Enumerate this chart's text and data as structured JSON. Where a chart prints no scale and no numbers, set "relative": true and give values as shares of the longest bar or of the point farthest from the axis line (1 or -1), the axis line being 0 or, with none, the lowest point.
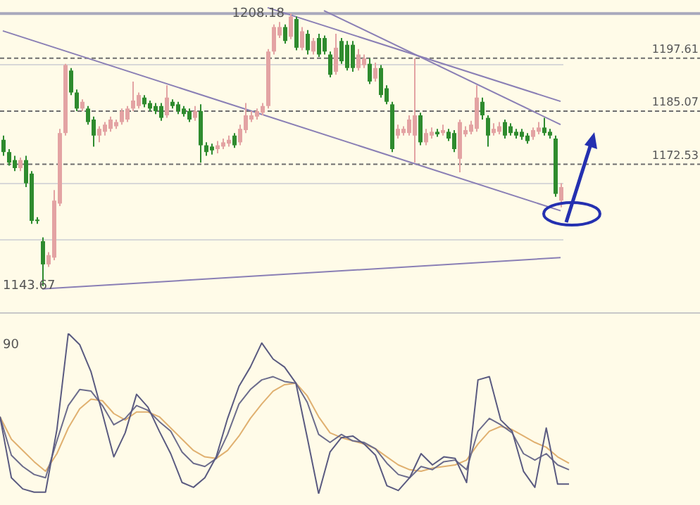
{
  "chart_data": [
    {
      "type": "candlestick",
      "categories": [
        null,
        null,
        null,
        null,
        null,
        null,
        null,
        null,
        null,
        null,
        null,
        null,
        null,
        null,
        null,
        null,
        null,
        null,
        null,
        null,
        null,
        null,
        null,
        null,
        null,
        null,
        null,
        null,
        null,
        null,
        null,
        null,
        null,
        null,
        null,
        null,
        null,
        null,
        null,
        null,
        null,
        null,
        null,
        null,
        null,
        null,
        null,
        null,
        null,
        null,
        null,
        null,
        null,
        null,
        null,
        null,
        null,
        null,
        null,
        null,
        null,
        null,
        null,
        null,
        null,
        null,
        null,
        null,
        null,
        null,
        null,
        null,
        null,
        null,
        null,
        null,
        null,
        null,
        null,
        null,
        null,
        null,
        null,
        null,
        null,
        null,
        null,
        null,
        null,
        null,
        null,
        null,
        null,
        null,
        null,
        null,
        null,
        null,
        null,
        null
      ],
      "ohlc": [
        [
          1178.3,
          1179.3,
          1174.5,
          1175.4
        ],
        [
          1175.4,
          1176.1,
          1172.2,
          1172.9
        ],
        [
          1173.5,
          1174.5,
          1170.9,
          1171.6
        ],
        [
          1171.6,
          1174.1,
          1170.9,
          1173.5
        ],
        [
          1173.5,
          1174.5,
          1167.1,
          1168.0
        ],
        [
          1170.3,
          1170.9,
          1158.4,
          1159.1
        ],
        [
          1159.4,
          1160.0,
          1158.4,
          1159.1
        ],
        [
          1154.3,
          1155.2,
          1143.67,
          1148.8
        ],
        [
          1148.8,
          1151.7,
          1148.2,
          1151.0
        ],
        [
          1150.4,
          1166.4,
          1149.8,
          1163.9
        ],
        [
          1163.2,
          1180.9,
          1162.6,
          1179.9
        ],
        [
          1179.9,
          1196.3,
          1179.3,
          1196.0
        ],
        [
          1194.7,
          1195.3,
          1188.9,
          1189.5
        ],
        [
          1189.5,
          1190.2,
          1185.1,
          1185.7
        ],
        [
          1185.7,
          1187.9,
          1185.1,
          1187.3
        ],
        [
          1185.7,
          1186.3,
          1181.9,
          1182.5
        ],
        [
          1183.1,
          1183.8,
          1176.7,
          1179.3
        ],
        [
          1179.3,
          1181.5,
          1177.7,
          1180.9
        ],
        [
          1180.2,
          1182.5,
          1179.3,
          1181.9
        ],
        [
          1180.9,
          1183.8,
          1180.2,
          1183.1
        ],
        [
          1181.5,
          1183.1,
          1180.9,
          1182.5
        ],
        [
          1182.5,
          1185.7,
          1181.9,
          1185.1
        ],
        [
          1183.1,
          1186.3,
          1182.5,
          1185.7
        ],
        [
          1185.7,
          1192.1,
          1185.1,
          1187.6
        ],
        [
          1186.3,
          1189.5,
          1185.7,
          1188.9
        ],
        [
          1188.3,
          1188.9,
          1186.0,
          1186.7
        ],
        [
          1187.0,
          1187.6,
          1185.1,
          1185.7
        ],
        [
          1186.3,
          1187.0,
          1184.4,
          1185.1
        ],
        [
          1186.3,
          1187.0,
          1182.8,
          1183.5
        ],
        [
          1184.1,
          1191.2,
          1183.5,
          1188.3
        ],
        [
          1187.3,
          1187.9,
          1185.7,
          1186.3
        ],
        [
          1186.7,
          1187.3,
          1184.4,
          1185.1
        ],
        [
          1185.7,
          1186.3,
          1183.8,
          1184.4
        ],
        [
          1185.1,
          1185.7,
          1182.5,
          1183.1
        ],
        [
          1183.5,
          1186.3,
          1182.8,
          1185.1
        ],
        [
          1185.1,
          1186.7,
          1172.9,
          1177.0
        ],
        [
          1177.0,
          1177.7,
          1174.5,
          1175.4
        ],
        [
          1176.7,
          1177.4,
          1174.8,
          1175.8
        ],
        [
          1176.1,
          1178.0,
          1175.1,
          1177.0
        ],
        [
          1176.7,
          1178.6,
          1176.1,
          1177.7
        ],
        [
          1177.4,
          1179.3,
          1176.7,
          1178.3
        ],
        [
          1179.3,
          1179.9,
          1176.4,
          1177.0
        ],
        [
          1177.7,
          1181.9,
          1177.0,
          1180.9
        ],
        [
          1180.6,
          1187.0,
          1179.9,
          1184.1
        ],
        [
          1183.1,
          1185.1,
          1182.5,
          1184.1
        ],
        [
          1183.8,
          1185.7,
          1183.1,
          1185.1
        ],
        [
          1184.7,
          1187.0,
          1184.1,
          1186.3
        ],
        [
          1186.3,
          1199.8,
          1185.7,
          1199.2
        ],
        [
          1199.2,
          1205.6,
          1198.5,
          1205.0
        ],
        [
          1203.0,
          1206.2,
          1202.4,
          1205.0
        ],
        [
          1205.0,
          1205.6,
          1201.1,
          1201.7
        ],
        [
          1202.7,
          1208.18,
          1202.1,
          1207.5
        ],
        [
          1206.9,
          1207.5,
          1199.5,
          1200.1
        ],
        [
          1200.1,
          1205.0,
          1199.5,
          1204.0
        ],
        [
          1203.4,
          1204.3,
          1198.5,
          1199.5
        ],
        [
          1199.2,
          1202.4,
          1198.5,
          1201.7
        ],
        [
          1202.4,
          1203.4,
          1197.9,
          1198.5
        ],
        [
          1202.4,
          1203.0,
          1198.5,
          1199.2
        ],
        [
          1198.5,
          1199.2,
          1193.1,
          1193.7
        ],
        [
          1194.4,
          1203.4,
          1193.7,
          1200.1
        ],
        [
          1201.7,
          1202.4,
          1196.3,
          1196.9
        ],
        [
          1200.8,
          1201.7,
          1194.7,
          1195.3
        ],
        [
          1200.8,
          1201.7,
          1194.4,
          1195.3
        ],
        [
          1195.3,
          1199.8,
          1194.7,
          1198.5
        ],
        [
          1196.0,
          1198.5,
          1195.3,
          1197.6
        ],
        [
          1196.3,
          1197.6,
          1191.5,
          1192.1
        ],
        [
          1192.8,
          1196.6,
          1192.1,
          1195.3
        ],
        [
          1195.3,
          1196.0,
          1188.3,
          1188.9
        ],
        [
          1190.5,
          1191.2,
          1186.7,
          1187.3
        ],
        [
          1186.7,
          1187.3,
          1175.4,
          1176.1
        ],
        [
          1179.3,
          1181.9,
          1178.6,
          1180.9
        ],
        [
          1179.9,
          1181.5,
          1179.3,
          1180.9
        ],
        [
          1179.9,
          1184.1,
          1179.3,
          1183.1
        ],
        [
          1179.3,
          1197.6,
          1172.9,
          1184.1
        ],
        [
          1184.1,
          1184.7,
          1177.0,
          1177.7
        ],
        [
          1177.7,
          1180.9,
          1177.0,
          1179.9
        ],
        [
          1179.3,
          1181.2,
          1178.6,
          1180.2
        ],
        [
          1180.2,
          1180.9,
          1179.0,
          1179.6
        ],
        [
          1179.9,
          1181.9,
          1179.3,
          1180.6
        ],
        [
          1180.2,
          1180.9,
          1178.0,
          1178.6
        ],
        [
          1179.9,
          1180.6,
          1175.4,
          1176.1
        ],
        [
          1173.8,
          1183.1,
          1170.6,
          1182.5
        ],
        [
          1179.6,
          1181.5,
          1179.0,
          1180.6
        ],
        [
          1180.2,
          1182.8,
          1179.6,
          1181.9
        ],
        [
          1180.9,
          1191.2,
          1180.2,
          1188.3
        ],
        [
          1187.3,
          1188.3,
          1183.1,
          1184.1
        ],
        [
          1183.5,
          1184.1,
          1176.7,
          1179.3
        ],
        [
          1179.9,
          1182.2,
          1179.3,
          1180.9
        ],
        [
          1180.2,
          1182.5,
          1179.6,
          1181.5
        ],
        [
          1182.5,
          1183.1,
          1178.6,
          1179.3
        ],
        [
          1181.5,
          1182.2,
          1179.3,
          1179.9
        ],
        [
          1180.2,
          1180.9,
          1178.6,
          1179.3
        ],
        [
          1180.2,
          1180.9,
          1178.3,
          1179.0
        ],
        [
          1179.3,
          1179.9,
          1177.4,
          1178.0
        ],
        [
          1179.0,
          1181.2,
          1178.3,
          1180.6
        ],
        [
          1180.2,
          1182.5,
          1179.6,
          1181.2
        ],
        [
          1181.2,
          1183.5,
          1179.3,
          1179.9
        ],
        [
          1180.2,
          1180.9,
          1178.6,
          1179.3
        ],
        [
          1178.6,
          1179.3,
          1164.8,
          1165.5
        ],
        [
          1163.9,
          1168.0,
          1162.3,
          1167.1
        ]
      ],
      "colors": [
        "#2e8b2e",
        "#2e8b2e",
        "#2e8b2e",
        "#e3a3a3",
        "#2e8b2e",
        "#2e8b2e",
        "#2e8b2e",
        "#2e8b2e",
        "#e3a3a3",
        "#e3a3a3",
        "#e3a3a3",
        "#e3a3a3",
        "#2e8b2e",
        "#2e8b2e",
        "#e3a3a3",
        "#2e8b2e",
        "#2e8b2e",
        "#e3a3a3",
        "#e3a3a3",
        "#e3a3a3",
        "#e3a3a3",
        "#e3a3a3",
        "#e3a3a3",
        "#e3a3a3",
        "#e3a3a3",
        "#2e8b2e",
        "#2e8b2e",
        "#2e8b2e",
        "#2e8b2e",
        "#e3a3a3",
        "#2e8b2e",
        "#2e8b2e",
        "#2e8b2e",
        "#2e8b2e",
        "#e3a3a3",
        "#2e8b2e",
        "#2e8b2e",
        "#2e8b2e",
        "#e3a3a3",
        "#e3a3a3",
        "#e3a3a3",
        "#2e8b2e",
        "#e3a3a3",
        "#e3a3a3",
        "#e3a3a3",
        "#e3a3a3",
        "#e3a3a3",
        "#e3a3a3",
        "#e3a3a3",
        "#e3a3a3",
        "#2e8b2e",
        "#e3a3a3",
        "#2e8b2e",
        "#e3a3a3",
        "#2e8b2e",
        "#e3a3a3",
        "#2e8b2e",
        "#2e8b2e",
        "#2e8b2e",
        "#e3a3a3",
        "#2e8b2e",
        "#2e8b2e",
        "#2e8b2e",
        "#e3a3a3",
        "#e3a3a3",
        "#2e8b2e",
        "#e3a3a3",
        "#2e8b2e",
        "#2e8b2e",
        "#2e8b2e",
        "#e3a3a3",
        "#e3a3a3",
        "#e3a3a3",
        "#e3a3a3",
        "#2e8b2e",
        "#e3a3a3",
        "#e3a3a3",
        "#2e8b2e",
        "#e3a3a3",
        "#2e8b2e",
        "#2e8b2e",
        "#e3a3a3",
        "#e3a3a3",
        "#e3a3a3",
        "#e3a3a3",
        "#2e8b2e",
        "#2e8b2e",
        "#e3a3a3",
        "#e3a3a3",
        "#2e8b2e",
        "#2e8b2e",
        "#2e8b2e",
        "#2e8b2e",
        "#2e8b2e",
        "#e3a3a3",
        "#e3a3a3",
        "#2e8b2e",
        "#2e8b2e",
        "#2e8b2e",
        "#e3a3a3"
      ],
      "yticks": [
        {
          "value": 1154.6,
          "label": null
        },
        {
          "value": 1168.0,
          "label": null
        },
        {
          "value": 1196.0,
          "label": null
        }
      ],
      "grid": "y",
      "tick_labels": false,
      "ref_lines": [
        {
          "axis": "y",
          "value": 1208.18,
          "color": "#a9a9bd"
        },
        {
          "axis": "y",
          "value": 1197.61,
          "label": "1197.61",
          "color": "#6e6e6e",
          "line_style": "dashed"
        },
        {
          "axis": "y",
          "value": 1185.07,
          "label": "1185.07",
          "color": "#6e6e6e",
          "line_style": "dashed"
        },
        {
          "axis": "y",
          "value": 1172.53,
          "label": "1172.53",
          "color": "#6e6e6e",
          "line_style": "dashed"
        }
      ],
      "annotations": [
        {
          "text": "1208.18",
          "y": 1208.18
        },
        "1143.67"
      ],
      "series": [
        {
          "type": "line",
          "color": "#8a7fb5",
          "values": [
            1204.1,
            null,
            null,
            null,
            null,
            null,
            null,
            null,
            null,
            null,
            null,
            null,
            null,
            null,
            null,
            null,
            null,
            null,
            null,
            null,
            null,
            null,
            null,
            null,
            null,
            null,
            null,
            null,
            null,
            null,
            null,
            null,
            null,
            null,
            null,
            null,
            null,
            null,
            null,
            null,
            null,
            null,
            null,
            null,
            null,
            null,
            null,
            null,
            null,
            null,
            null,
            null,
            null,
            null,
            null,
            null,
            null,
            null,
            null,
            null,
            null,
            null,
            null,
            null,
            null,
            null,
            null,
            null,
            null,
            null,
            null,
            null,
            null,
            null,
            null,
            null,
            null,
            null,
            null,
            null,
            null,
            null,
            null,
            null,
            null,
            null,
            null,
            null,
            null,
            null,
            null,
            null,
            null,
            null,
            null,
            null,
            null,
            null,
            null,
            1161.5
          ]
        },
        {
          "type": "line",
          "color": "#8a7fb5",
          "values": [
            null,
            null,
            null,
            null,
            null,
            null,
            null,
            null,
            null,
            null,
            null,
            null,
            null,
            null,
            null,
            null,
            null,
            null,
            null,
            null,
            null,
            null,
            null,
            null,
            null,
            null,
            null,
            null,
            null,
            null,
            null,
            null,
            null,
            null,
            null,
            null,
            null,
            null,
            null,
            null,
            null,
            null,
            null,
            null,
            null,
            null,
            null,
            null,
            null,
            null,
            null,
            null,
            null,
            null,
            null,
            null,
            null,
            1208.9,
            null,
            null,
            null,
            null,
            null,
            null,
            null,
            null,
            null,
            null,
            null,
            null,
            null,
            null,
            null,
            null,
            null,
            null,
            null,
            null,
            null,
            null,
            null,
            null,
            null,
            null,
            null,
            null,
            null,
            null,
            null,
            null,
            null,
            null,
            null,
            null,
            null,
            null,
            null,
            null,
            null,
            1181.9
          ]
        },
        {
          "type": "line",
          "color": "#8a7fb5",
          "values": [
            null,
            null,
            null,
            null,
            null,
            null,
            null,
            null,
            null,
            null,
            null,
            null,
            null,
            null,
            null,
            null,
            null,
            null,
            null,
            null,
            null,
            null,
            null,
            null,
            null,
            null,
            null,
            null,
            null,
            null,
            null,
            null,
            null,
            null,
            null,
            null,
            null,
            null,
            null,
            null,
            null,
            null,
            null,
            null,
            null,
            null,
            null,
            1209.6,
            null,
            null,
            null,
            null,
            null,
            null,
            null,
            null,
            null,
            null,
            null,
            null,
            null,
            null,
            null,
            null,
            null,
            null,
            null,
            null,
            null,
            null,
            null,
            null,
            null,
            null,
            null,
            null,
            null,
            null,
            null,
            null,
            null,
            null,
            null,
            null,
            null,
            null,
            null,
            null,
            null,
            null,
            null,
            null,
            null,
            null,
            null,
            null,
            null,
            null,
            null,
            1187.4
          ]
        },
        {
          "type": "line",
          "color": "#8a7fb5",
          "values": [
            null,
            null,
            null,
            null,
            null,
            null,
            null,
            1143.0,
            null,
            null,
            null,
            null,
            null,
            null,
            null,
            null,
            null,
            null,
            null,
            null,
            null,
            null,
            null,
            null,
            null,
            null,
            null,
            null,
            null,
            null,
            null,
            null,
            null,
            null,
            null,
            null,
            null,
            null,
            null,
            null,
            null,
            null,
            null,
            null,
            null,
            null,
            null,
            null,
            null,
            null,
            null,
            null,
            null,
            null,
            null,
            null,
            null,
            null,
            null,
            null,
            null,
            null,
            null,
            null,
            null,
            null,
            null,
            null,
            null,
            null,
            null,
            null,
            null,
            null,
            null,
            null,
            null,
            null,
            null,
            null,
            null,
            null,
            null,
            null,
            null,
            null,
            null,
            null,
            null,
            null,
            null,
            null,
            null,
            null,
            null,
            null,
            null,
            null,
            null,
            1150.4
          ]
        }
      ]
    },
    {
      "type": "line",
      "relative": true,
      "tick_labels": false,
      "annotations": [
        "90"
      ],
      "categories": [
        null,
        null,
        null,
        null,
        null,
        null,
        null,
        null,
        null,
        null,
        null,
        null,
        null,
        null,
        null,
        null,
        null,
        null,
        null,
        null,
        null,
        null,
        null,
        null,
        null,
        null,
        null,
        null,
        null,
        null,
        null,
        null,
        null,
        null,
        null,
        null,
        null,
        null,
        null,
        null,
        null,
        null,
        null,
        null,
        null,
        null,
        null,
        null,
        null,
        null,
        null
      ],
      "series": [
        {
          "color": "#5a5a80",
          "values": [
            0.48,
            0.1,
            0.03,
            0.01,
            0.01,
            0.4,
            1.0,
            0.93,
            0.76,
            0.5,
            0.23,
            0.38,
            0.62,
            0.54,
            0.39,
            0.25,
            0.07,
            0.04,
            0.1,
            0.23,
            0.47,
            0.67,
            0.79,
            0.94,
            0.84,
            0.79,
            0.69,
            0.35,
            0.0,
            0.26,
            0.35,
            0.36,
            0.31,
            0.24,
            0.05,
            0.02,
            0.1,
            0.25,
            0.18,
            0.23,
            0.22,
            0.07,
            0.71,
            0.73,
            0.46,
            0.39,
            0.14,
            0.04,
            0.41,
            0.06,
            0.06
          ]
        },
        {
          "color": "#6c6c8c",
          "values": [
            0.48,
            0.24,
            0.17,
            0.12,
            0.1,
            0.33,
            0.55,
            0.65,
            0.64,
            0.55,
            0.43,
            0.47,
            0.55,
            0.52,
            0.45,
            0.39,
            0.26,
            0.19,
            0.17,
            0.22,
            0.37,
            0.56,
            0.65,
            0.71,
            0.73,
            0.7,
            0.69,
            0.57,
            0.37,
            0.32,
            0.37,
            0.33,
            0.32,
            0.28,
            0.19,
            0.12,
            0.1,
            0.17,
            0.15,
            0.2,
            0.21,
            0.15,
            0.39,
            0.47,
            0.43,
            0.38,
            0.25,
            0.21,
            0.25,
            0.18,
            0.15
          ]
        },
        {
          "color": "#e0b070",
          "values": [
            0.48,
            0.34,
            0.27,
            0.2,
            0.14,
            0.25,
            0.41,
            0.53,
            0.59,
            0.58,
            0.5,
            0.46,
            0.51,
            0.51,
            0.48,
            0.41,
            0.34,
            0.27,
            0.23,
            0.22,
            0.27,
            0.36,
            0.47,
            0.56,
            0.64,
            0.68,
            0.69,
            0.61,
            0.48,
            0.38,
            0.35,
            0.33,
            0.31,
            0.28,
            0.23,
            0.18,
            0.15,
            0.14,
            0.16,
            0.17,
            0.18,
            0.21,
            0.31,
            0.39,
            0.42,
            0.4,
            0.36,
            0.32,
            0.29,
            0.23,
            0.19
          ]
        }
      ]
    }
  ]
}
